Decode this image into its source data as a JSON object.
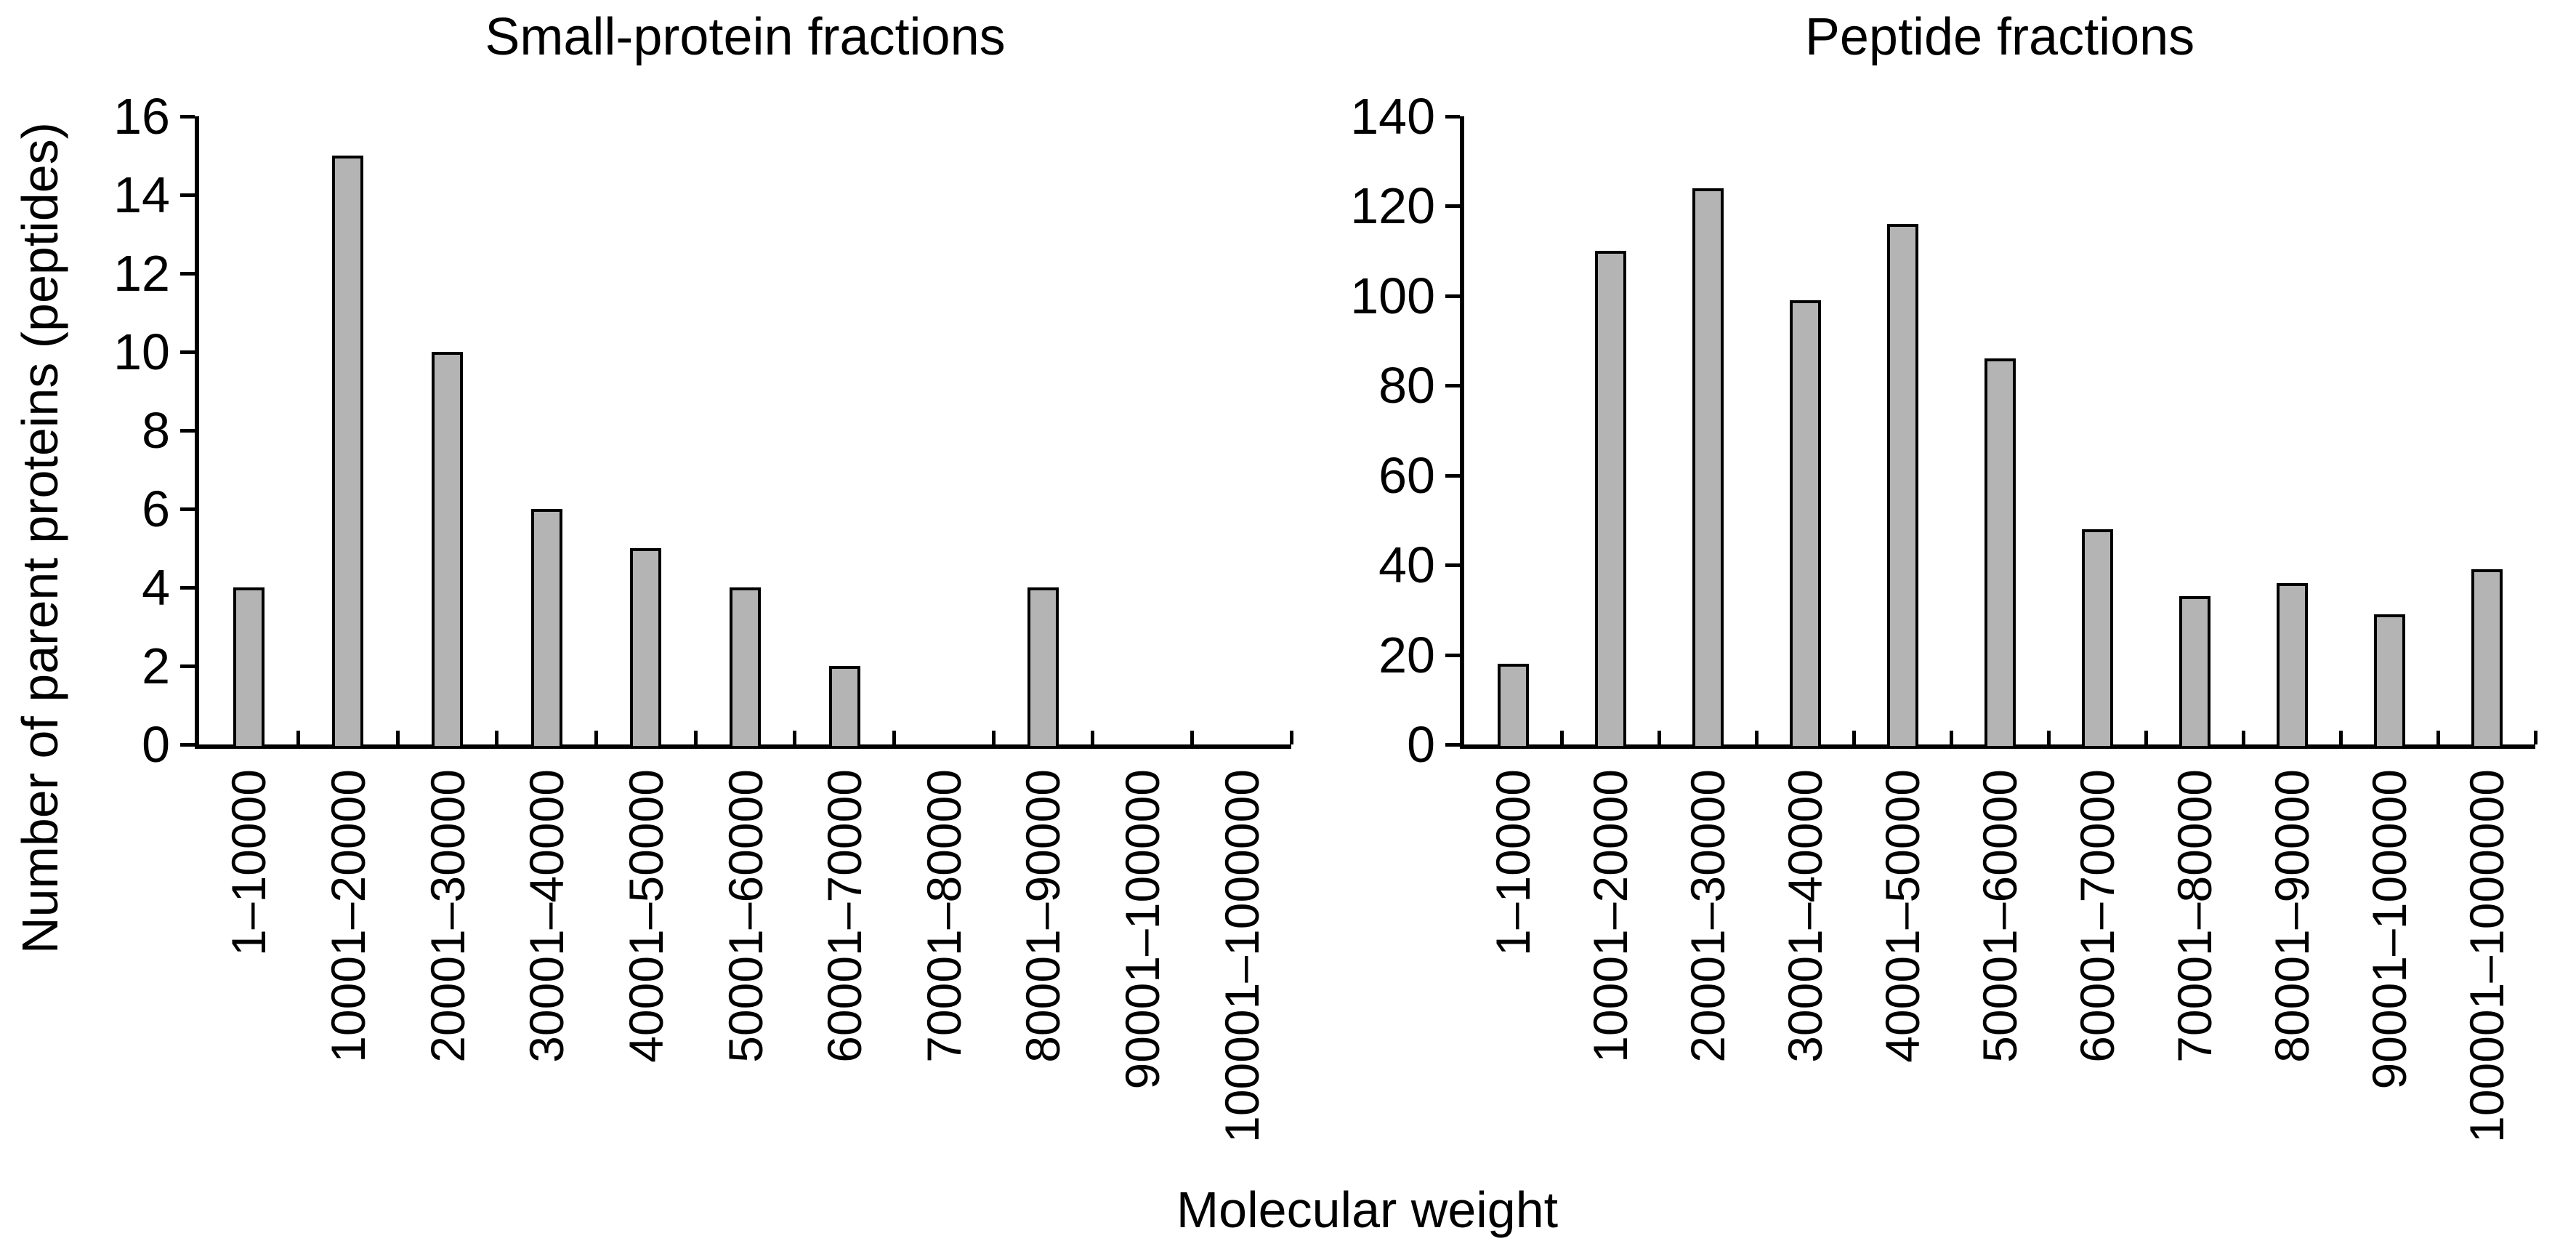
{
  "figure": {
    "y_axis_label": "Number of parent proteins (peptides)",
    "x_axis_label": "Molecular weight",
    "background_color": "#ffffff",
    "text_color": "#000000",
    "axis_color": "#000000"
  },
  "chart_data": [
    {
      "type": "bar",
      "title": "Small-protein fractions",
      "xlabel": "Molecular weight",
      "ylabel": "Number of parent proteins (peptides)",
      "categories": [
        "1–10000",
        "10001–20000",
        "20001–30000",
        "30001–40000",
        "40001–50000",
        "50001–60000",
        "60001–70000",
        "70001–80000",
        "80001–90000",
        "90001–100000",
        "100001–1000000"
      ],
      "values": [
        4,
        15,
        10,
        6,
        5,
        4,
        2,
        0,
        4,
        0,
        0
      ],
      "ylim": [
        0,
        16
      ],
      "yticks": [
        0,
        2,
        4,
        6,
        8,
        10,
        12,
        14,
        16
      ],
      "grid": false,
      "legend": "none",
      "bar_fill_color": "#b4b4b4",
      "bar_border_color": "#000000"
    },
    {
      "type": "bar",
      "title": "Peptide fractions",
      "xlabel": "Molecular weight",
      "ylabel": "Number of parent proteins (peptides)",
      "categories": [
        "1–10000",
        "10001–20000",
        "20001–30000",
        "30001–40000",
        "40001–50000",
        "50001–60000",
        "60001–70000",
        "70001–80000",
        "80001–90000",
        "90001–100000",
        "100001–1000000"
      ],
      "values": [
        18,
        110,
        124,
        99,
        116,
        86,
        48,
        33,
        36,
        29,
        39
      ],
      "ylim": [
        0,
        140
      ],
      "yticks": [
        0,
        20,
        40,
        60,
        80,
        100,
        120,
        140
      ],
      "grid": false,
      "legend": "none",
      "bar_fill_color": "#b4b4b4",
      "bar_border_color": "#000000"
    }
  ]
}
